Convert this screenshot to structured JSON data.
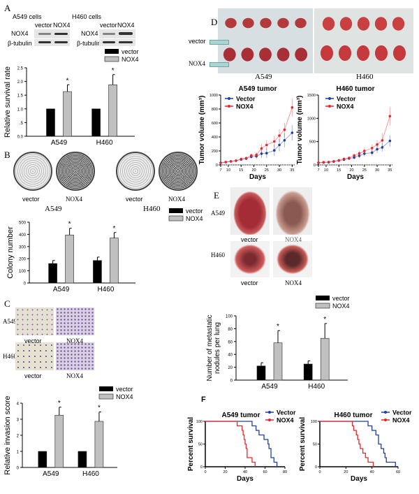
{
  "panels": {
    "A": "A",
    "B": "B",
    "C": "C",
    "D": "D",
    "E": "E",
    "F": "F"
  },
  "blot": {
    "a549_title": "A549 cells",
    "h460_title": "H460 cells",
    "lanes": [
      "vector",
      "NOX4"
    ],
    "rows": [
      "NOX4",
      "β-tubulin"
    ]
  },
  "legend_lower": {
    "vector": "vector",
    "nox4": "NOX4"
  },
  "legend_upper": {
    "vector": "Vector",
    "nox4": "NOX4"
  },
  "images": {
    "vector": "vector",
    "nox4": "NOX4",
    "a549": "A549",
    "h460": "H460"
  },
  "colors": {
    "vector_bar": "#000000",
    "nox4_bar": "#c0c0c0",
    "vector_line": "#1f3f9f",
    "nox4_line": "#e8262b"
  },
  "chart_data": [
    {
      "id": "A",
      "type": "bar",
      "ylabel": "Relative survival rate",
      "categories": [
        "A549",
        "H460"
      ],
      "ylim": [
        0,
        2.5
      ],
      "yticks": [
        "0.0",
        ".5",
        "1.0",
        "1.5",
        "2.0",
        "2.5"
      ],
      "ytick_values": [
        0,
        0.5,
        1,
        1.5,
        2,
        2.5
      ],
      "series": [
        {
          "name": "vector",
          "values": [
            1,
            1
          ],
          "err": [
            0,
            0
          ]
        },
        {
          "name": "NOX4",
          "values": [
            1.63,
            1.88
          ],
          "err": [
            0.25,
            0.37
          ]
        }
      ],
      "annotations": [
        "*",
        "*"
      ]
    },
    {
      "id": "B",
      "type": "bar",
      "ylabel": "Colony number",
      "categories": [
        "A549",
        "H460"
      ],
      "ylim": [
        0,
        500
      ],
      "yticks": [
        "0",
        "100",
        "200",
        "300",
        "400",
        "500"
      ],
      "ytick_values": [
        0,
        100,
        200,
        300,
        400,
        500
      ],
      "series": [
        {
          "name": "vector",
          "values": [
            160,
            185
          ],
          "err": [
            25,
            28
          ]
        },
        {
          "name": "NOX4",
          "values": [
            395,
            370
          ],
          "err": [
            55,
            45
          ]
        }
      ],
      "annotations": [
        "*",
        "*"
      ]
    },
    {
      "id": "C",
      "type": "bar",
      "ylabel": "Relative invasion score",
      "categories": [
        "A549",
        "H460"
      ],
      "ylim": [
        0,
        4
      ],
      "yticks": [
        "0",
        "1",
        "2",
        "3",
        "4"
      ],
      "ytick_values": [
        0,
        1,
        2,
        3,
        4
      ],
      "series": [
        {
          "name": "vector",
          "values": [
            1,
            1
          ],
          "err": [
            0,
            0
          ]
        },
        {
          "name": "NOX4",
          "values": [
            3.25,
            2.87
          ],
          "err": [
            0.5,
            0.58
          ]
        }
      ],
      "annotations": [
        "*",
        "*"
      ]
    },
    {
      "id": "E",
      "type": "bar",
      "ylabel": "Number of metastatic nodules per lung",
      "categories": [
        "A549",
        "H460"
      ],
      "ylim": [
        0,
        100
      ],
      "yticks": [
        "0",
        "20",
        "40",
        "60",
        "80",
        "100"
      ],
      "ytick_values": [
        0,
        20,
        40,
        60,
        80,
        100
      ],
      "series": [
        {
          "name": "vector",
          "values": [
            22,
            25
          ],
          "err": [
            5,
            5
          ]
        },
        {
          "name": "NOX4",
          "values": [
            58,
            65
          ],
          "err": [
            19,
            23
          ]
        }
      ],
      "annotations": [
        "*",
        "*"
      ]
    },
    {
      "id": "D1",
      "type": "line",
      "title": "A549 tumor",
      "xlabel": "Days",
      "ylabel": "Tumor volume (mm³)",
      "xlim": [
        7,
        36
      ],
      "xticks": [
        7,
        10,
        15,
        20,
        25,
        30,
        35
      ],
      "ylim": [
        0,
        1000
      ],
      "yticks": [
        0,
        200,
        400,
        600,
        800,
        1000
      ],
      "x": [
        7,
        9,
        11,
        13,
        15,
        17,
        19,
        21,
        23,
        25,
        28,
        30,
        32,
        35
      ],
      "series": [
        {
          "name": "Vector",
          "values": [
            30,
            40,
            50,
            60,
            77,
            90,
            117,
            124,
            161,
            168,
            208,
            285,
            352,
            460
          ],
          "err": [
            5,
            8,
            10,
            12,
            15,
            20,
            30,
            40,
            60,
            70,
            80,
            90,
            100,
            110
          ]
        },
        {
          "name": "NOX4",
          "values": [
            30,
            40,
            50,
            60,
            84,
            97,
            134,
            144,
            235,
            285,
            335,
            419,
            503,
            822
          ],
          "err": [
            5,
            8,
            10,
            12,
            15,
            20,
            30,
            40,
            60,
            70,
            80,
            90,
            100,
            130
          ]
        }
      ]
    },
    {
      "id": "D2",
      "type": "line",
      "title": "H460 tumor",
      "xlabel": "Days",
      "ylabel": "Tumor volume (mm³)",
      "xlim": [
        7,
        36
      ],
      "xticks": [
        7,
        10,
        15,
        20,
        25,
        30,
        35
      ],
      "ylim": [
        0,
        1500
      ],
      "yticks": [
        0,
        500,
        1000,
        1500
      ],
      "x": [
        7,
        9,
        11,
        13,
        15,
        17,
        19,
        21,
        23,
        25,
        28,
        30,
        32,
        35
      ],
      "series": [
        {
          "name": "Vector",
          "values": [
            46,
            52,
            57,
            72,
            93,
            113,
            139,
            160,
            196,
            242,
            263,
            335,
            376,
            515
          ],
          "err": [
            10,
            10,
            15,
            15,
            20,
            25,
            30,
            40,
            50,
            60,
            70,
            80,
            90,
            120
          ]
        },
        {
          "name": "NOX4",
          "values": [
            46,
            57,
            62,
            77,
            98,
            129,
            150,
            201,
            247,
            299,
            361,
            438,
            526,
            1046
          ],
          "err": [
            10,
            10,
            15,
            15,
            20,
            25,
            30,
            40,
            60,
            70,
            80,
            90,
            160,
            200
          ]
        }
      ]
    },
    {
      "id": "F1",
      "type": "line",
      "subtype": "survival",
      "title": "A549 tumor",
      "xlabel": "Days",
      "ylabel": "Percent survival",
      "xlim": [
        0,
        80
      ],
      "xticks": [
        0,
        20,
        40,
        60,
        80
      ],
      "ylim": [
        0,
        100
      ],
      "yticks": [
        0,
        50,
        100
      ],
      "series": [
        {
          "name": "Vector",
          "steps": [
            [
              0,
              100
            ],
            [
              47,
              90
            ],
            [
              51,
              80
            ],
            [
              54,
              70
            ],
            [
              59,
              60
            ],
            [
              63,
              50
            ],
            [
              64,
              40
            ],
            [
              66,
              20
            ],
            [
              69,
              10
            ],
            [
              72,
              0
            ]
          ]
        },
        {
          "name": "NOX4",
          "steps": [
            [
              0,
              100
            ],
            [
              32,
              90
            ],
            [
              37,
              80
            ],
            [
              38,
              70
            ],
            [
              39,
              60
            ],
            [
              40,
              50
            ],
            [
              41,
              40
            ],
            [
              42,
              20
            ],
            [
              47,
              10
            ],
            [
              50,
              0
            ]
          ]
        }
      ]
    },
    {
      "id": "F2",
      "type": "line",
      "subtype": "survival",
      "title": "H460 tumor",
      "xlabel": "Days",
      "ylabel": "Percent survival",
      "xlim": [
        0,
        60
      ],
      "xticks": [
        0,
        20,
        40,
        60
      ],
      "ylim": [
        0,
        100
      ],
      "yticks": [
        0,
        50,
        100
      ],
      "series": [
        {
          "name": "Vector",
          "steps": [
            [
              0,
              100
            ],
            [
              37,
              90
            ],
            [
              40,
              80
            ],
            [
              43,
              70
            ],
            [
              45,
              50
            ],
            [
              47,
              40
            ],
            [
              49,
              30
            ],
            [
              50,
              20
            ],
            [
              51,
              10
            ],
            [
              58,
              0
            ]
          ]
        },
        {
          "name": "NOX4",
          "steps": [
            [
              0,
              100
            ],
            [
              25,
              90
            ],
            [
              26,
              80
            ],
            [
              28,
              70
            ],
            [
              29,
              60
            ],
            [
              30,
              50
            ],
            [
              31,
              40
            ],
            [
              33,
              30
            ],
            [
              35,
              20
            ],
            [
              37,
              10
            ],
            [
              41,
              0
            ]
          ]
        }
      ]
    }
  ]
}
